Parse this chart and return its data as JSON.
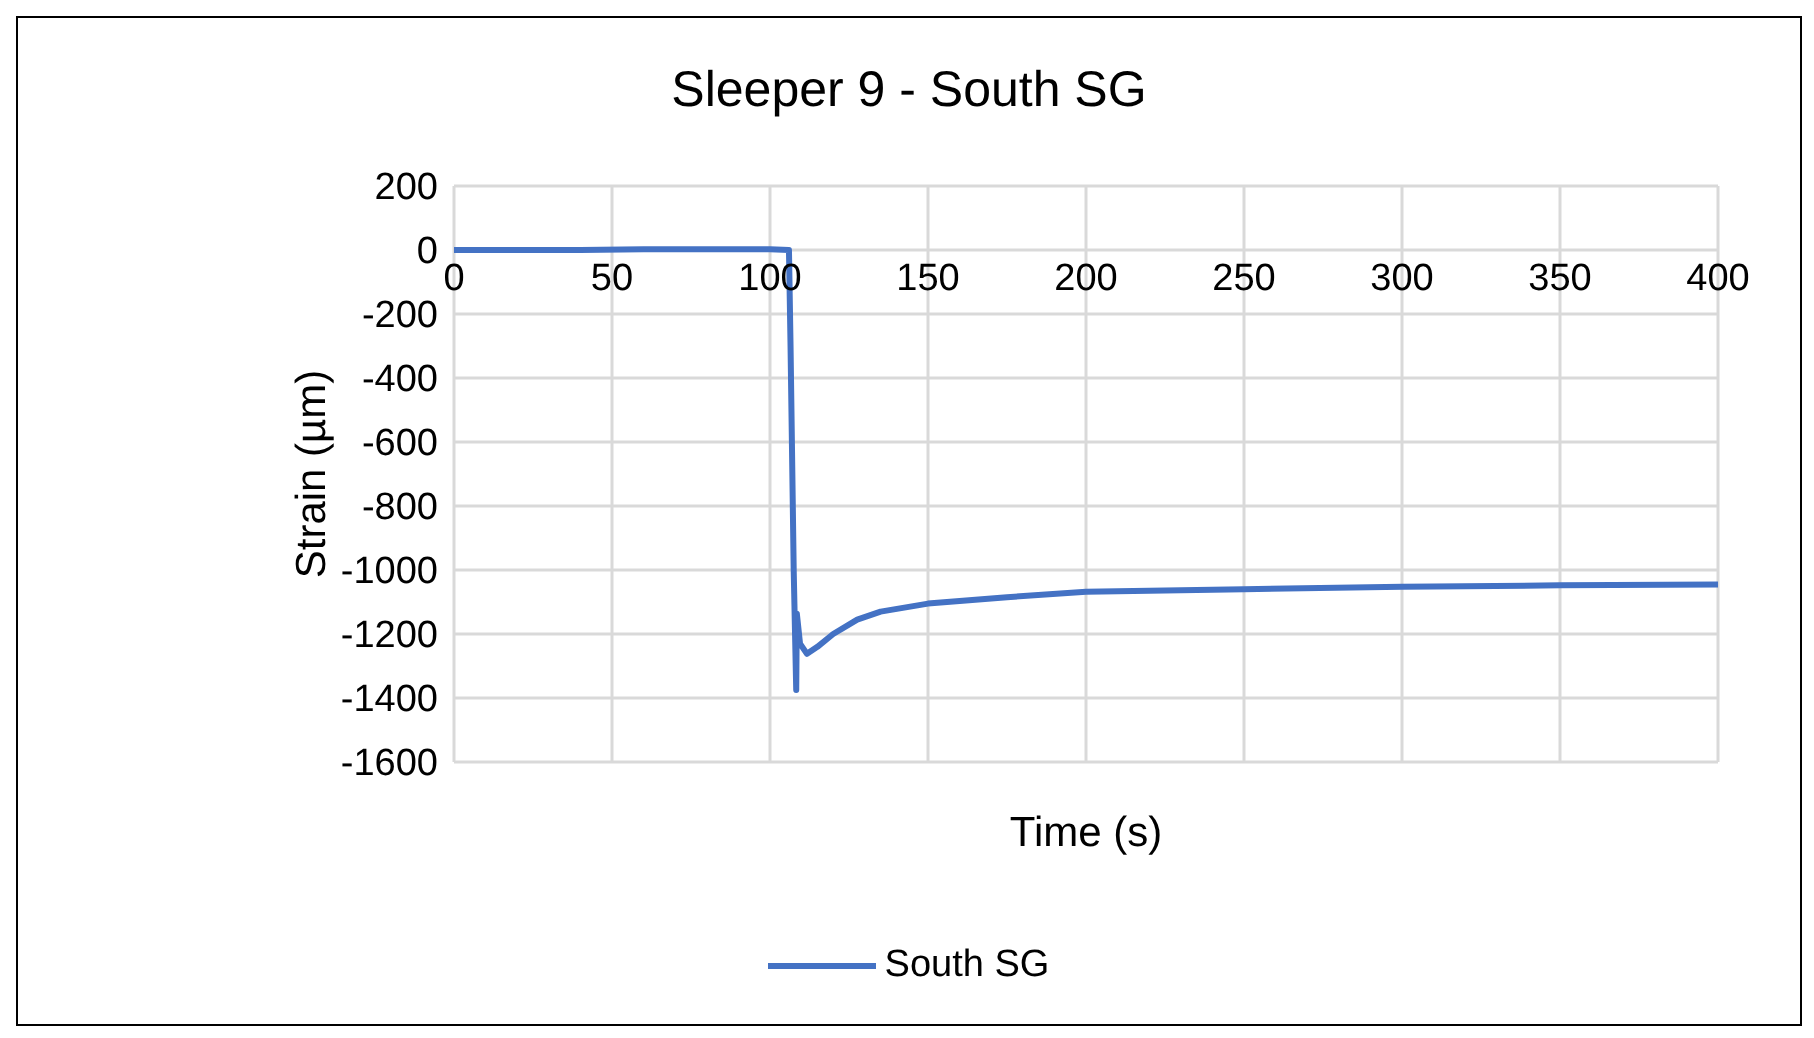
{
  "chart_data": {
    "type": "line",
    "title": "Sleeper 9 - South SG",
    "xlabel": "Time (s)",
    "ylabel": "Strain (µm)",
    "series": [
      {
        "name": "South SG",
        "color": "#4472c4",
        "x": [
          0,
          20,
          40,
          60,
          80,
          100,
          106,
          106.5,
          107.5,
          108.3,
          108.5,
          109.5,
          111.7,
          115,
          120,
          127.6,
          135,
          150,
          175,
          200,
          250,
          300,
          350,
          400
        ],
        "values": [
          0,
          0,
          0,
          2,
          2,
          2,
          0,
          -300,
          -1000,
          -1375,
          -1137,
          -1230,
          -1262,
          -1240,
          -1200,
          -1155,
          -1130,
          -1105,
          -1085,
          -1068,
          -1060,
          -1052,
          -1048,
          -1045
        ]
      }
    ],
    "xlim": [
      0,
      400
    ],
    "xticks": [
      0,
      50,
      100,
      150,
      200,
      250,
      300,
      350,
      400
    ],
    "ylim": [
      -1600,
      200
    ],
    "yticks": [
      200,
      0,
      -200,
      -400,
      -600,
      -800,
      -1000,
      -1200,
      -1400,
      -1600
    ],
    "grid": true,
    "legend": "bottom",
    "marker": "none",
    "line_style": "solid"
  }
}
